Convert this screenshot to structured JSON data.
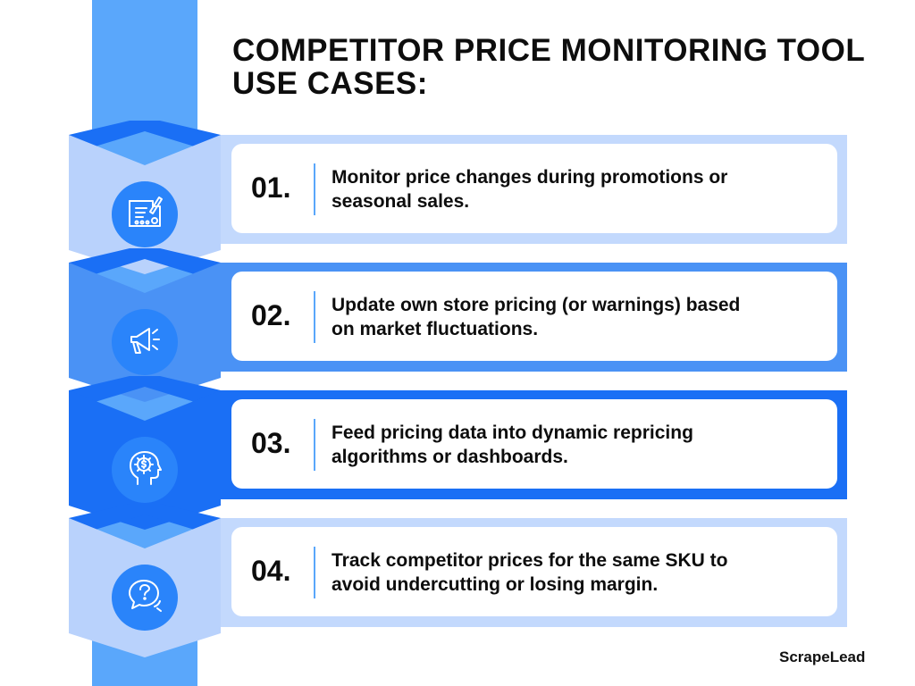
{
  "title_line1": "COMPETITOR PRICE MONITORING TOOL",
  "title_line2": "USE CASES:",
  "items": [
    {
      "number": "01.",
      "line1": "Monitor price changes during promotions or",
      "line2": "seasonal sales.",
      "icon": "blueprint-chart-icon",
      "band_color": "#c3d9fd",
      "hex_color": "#b9d2fc"
    },
    {
      "number": "02.",
      "line1": "Update own store pricing (or warnings) based",
      "line2": "on market fluctuations.",
      "icon": "megaphone-icon",
      "band_color": "#4a92f5",
      "hex_color": "#4a92f5"
    },
    {
      "number": "03.",
      "line1": "Feed pricing data into dynamic repricing",
      "line2": "algorithms or dashboards.",
      "icon": "head-gear-dollar-icon",
      "band_color": "#1a6ff5",
      "hex_color": "#1a6ff5"
    },
    {
      "number": "04.",
      "line1": "Track competitor prices for the same SKU to",
      "line2": "avoid undercutting or losing margin.",
      "icon": "question-chat-icon",
      "band_color": "#c3d9fd",
      "hex_color": "#b9d2fc"
    }
  ],
  "brand": "ScrapeLead",
  "colors": {
    "spine": "#5aa7fb",
    "icon_circle": "#2a84fa",
    "divider": "#5aa7fb",
    "text": "#0d0d0d"
  }
}
